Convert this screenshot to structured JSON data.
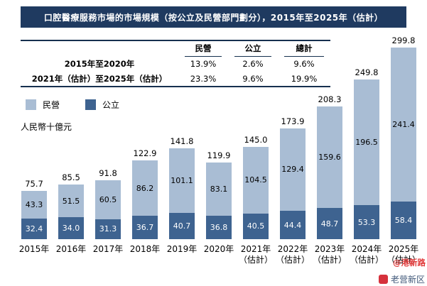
{
  "title_bar": {
    "text": "口腔醫療服務市場的市場規模（按公立及民營部門劃分），2015年至2025年（估計）"
  },
  "cagr_table": {
    "columns": [
      "民營",
      "公立",
      "總計"
    ],
    "rows": [
      {
        "label": "2015年至2020年",
        "values": [
          "13.9%",
          "2.6%",
          "9.6%"
        ]
      },
      {
        "label": "2021年（估計）至2025年（估計）",
        "values": [
          "23.3%",
          "9.6%",
          "19.9%"
        ]
      }
    ]
  },
  "legend": [
    {
      "label": "民營",
      "color": "#a9bdd4"
    },
    {
      "label": "公立",
      "color": "#3e6390"
    }
  ],
  "axis_label": "人民幣十億元",
  "chart_data": {
    "type": "bar",
    "stacked": true,
    "title": "口腔醫療服務市場的市場規模（按公立及民營部門劃分），2015年至2025年（估計）",
    "ylabel": "人民幣十億元",
    "ylim": [
      0,
      310
    ],
    "grid": false,
    "legend_position": "top-left",
    "categories": [
      [
        "2015年"
      ],
      [
        "2016年"
      ],
      [
        "2017年"
      ],
      [
        "2018年"
      ],
      [
        "2019年"
      ],
      [
        "2020年"
      ],
      [
        "2021年",
        "（估計）"
      ],
      [
        "2022年",
        "（估計）"
      ],
      [
        "2023年",
        "（估計）"
      ],
      [
        "2024年",
        "（估計）"
      ],
      [
        "2025年",
        "（估計）"
      ]
    ],
    "series": [
      {
        "name": "民營",
        "color": "#a9bdd4",
        "values": [
          43.3,
          51.5,
          60.5,
          86.2,
          101.1,
          83.1,
          104.5,
          129.4,
          159.6,
          196.5,
          241.4
        ]
      },
      {
        "name": "公立",
        "color": "#3e6390",
        "values": [
          32.4,
          34.0,
          31.3,
          36.7,
          40.7,
          36.8,
          40.5,
          44.4,
          48.7,
          53.3,
          58.4
        ]
      }
    ],
    "totals": [
      75.7,
      85.5,
      91.8,
      122.9,
      141.8,
      119.9,
      145.0,
      173.9,
      208.3,
      249.8,
      299.8
    ]
  },
  "watermarks": {
    "side": "@港新路",
    "bottom": "老营新区"
  },
  "colors": {
    "title_bar_bg": "#1f3a60",
    "table_line": "#16304f",
    "private": "#a9bdd4",
    "public": "#3e6390",
    "watermark_red": "#e03a3a"
  }
}
